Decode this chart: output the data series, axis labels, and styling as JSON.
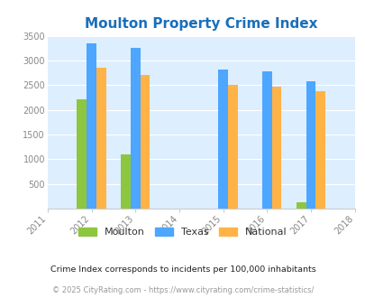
{
  "title": "Moulton Property Crime Index",
  "years": [
    2011,
    2012,
    2013,
    2014,
    2015,
    2016,
    2017,
    2018
  ],
  "bar_years": [
    2012,
    2013,
    2015,
    2016,
    2017
  ],
  "moulton": [
    2205,
    1100,
    0,
    0,
    120
  ],
  "texas": [
    3350,
    3250,
    2825,
    2775,
    2575
  ],
  "national": [
    2850,
    2700,
    2500,
    2475,
    2375
  ],
  "color_moulton": "#8dc63f",
  "color_texas": "#4da6ff",
  "color_national": "#ffb347",
  "bg_color": "#ddeeff",
  "ylim": [
    0,
    3500
  ],
  "yticks": [
    0,
    500,
    1000,
    1500,
    2000,
    2500,
    3000,
    3500
  ],
  "legend_labels": [
    "Moulton",
    "Texas",
    "National"
  ],
  "footnote1": "Crime Index corresponds to incidents per 100,000 inhabitants",
  "footnote2": "© 2025 CityRating.com - https://www.cityrating.com/crime-statistics/",
  "title_color": "#1a6fba",
  "footnote1_color": "#222222",
  "footnote2_color": "#999999",
  "bar_width": 0.22
}
